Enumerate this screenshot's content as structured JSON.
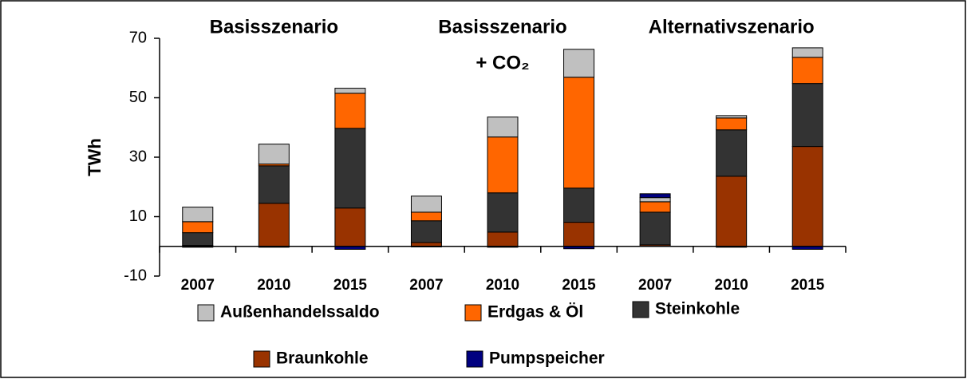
{
  "chart_data": {
    "type": "stacked_bar",
    "y_label": "TWh",
    "groups": [
      {
        "label": "Basisszenario"
      },
      {
        "label": "Basisszenario",
        "sublabel": "+ CO₂"
      },
      {
        "label": "Alternativszenario"
      }
    ],
    "categories": [
      "2007",
      "2010",
      "2015",
      "2007",
      "2010",
      "2015",
      "2007",
      "2010",
      "2015"
    ],
    "series": [
      {
        "name": "Außenhandelssaldo",
        "color": "#c0c0c0",
        "values": [
          4.9,
          6.7,
          1.7,
          5.4,
          6.7,
          9.4,
          1.4,
          0.8,
          3.2
        ]
      },
      {
        "name": "Erdgas & Öl",
        "color": "#ff6600",
        "values": [
          3.7,
          0.6,
          11.8,
          2.9,
          18.8,
          37.3,
          3.5,
          4.0,
          8.8
        ]
      },
      {
        "name": "Steinkohle",
        "color": "#333333",
        "values": [
          4.3,
          12.6,
          26.8,
          7.3,
          13.2,
          11.5,
          11.0,
          15.6,
          21.2
        ]
      },
      {
        "name": "Braunkohle",
        "color": "#993300",
        "values": [
          0.3,
          14.5,
          12.9,
          1.3,
          4.8,
          8.1,
          0.5,
          23.6,
          33.6
        ]
      },
      {
        "name": "Pumpspeicher",
        "color": "#000080",
        "values": [
          -0.3,
          -0.3,
          -1.0,
          -0.2,
          -0.3,
          -0.8,
          1.3,
          -0.3,
          -1.0
        ]
      }
    ],
    "ylim": [
      -10,
      70
    ],
    "yticks": [
      -10,
      10,
      30,
      50,
      70
    ]
  }
}
